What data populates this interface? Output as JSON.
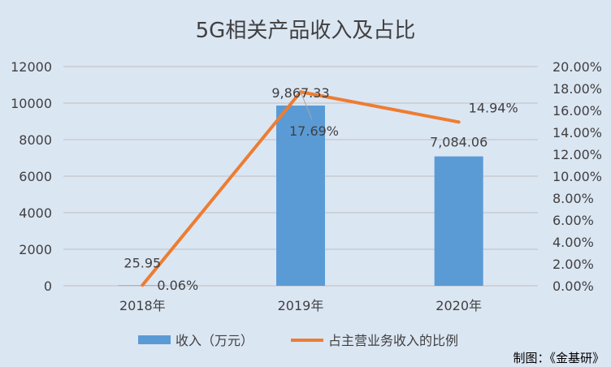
{
  "chart_data": {
    "type": "bar+line",
    "title": "5G相关产品收入及占比",
    "categories": [
      "2018年",
      "2019年",
      "2020年"
    ],
    "left_axis": {
      "ticks": [
        "0",
        "2000",
        "4000",
        "6000",
        "8000",
        "10000",
        "12000"
      ],
      "ylim": [
        0,
        12000
      ]
    },
    "right_axis": {
      "ticks": [
        "0.00%",
        "2.00%",
        "4.00%",
        "6.00%",
        "8.00%",
        "10.00%",
        "12.00%",
        "14.00%",
        "16.00%",
        "18.00%",
        "20.00%"
      ],
      "ylim": [
        0,
        0.2
      ]
    },
    "series": [
      {
        "name": "收入（万元）",
        "kind": "bar",
        "axis": "left",
        "color": "#5b9bd5",
        "values": [
          25.95,
          9867.33,
          7084.06
        ],
        "labels": [
          "25.95",
          "9,867.33",
          "7,084.06"
        ]
      },
      {
        "name": "占主营业务收入的比例",
        "kind": "line",
        "axis": "right",
        "color": "#ed7d31",
        "values": [
          0.0006,
          0.1769,
          0.1494
        ],
        "labels": [
          "0.06%",
          "17.69%",
          "14.94%"
        ]
      }
    ],
    "grid": "horizontal",
    "legend": "bottom"
  },
  "credit": "制图：《金基研》"
}
